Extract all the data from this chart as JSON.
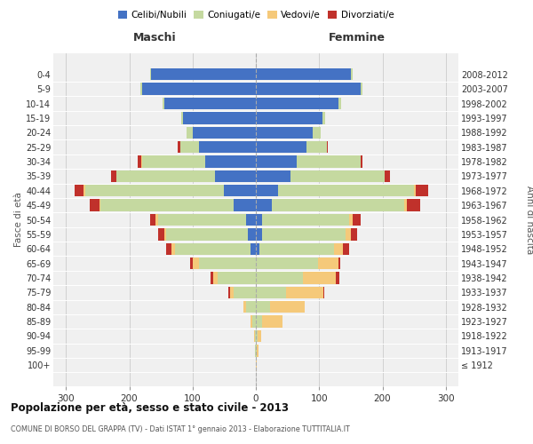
{
  "age_groups": [
    "100+",
    "95-99",
    "90-94",
    "85-89",
    "80-84",
    "75-79",
    "70-74",
    "65-69",
    "60-64",
    "55-59",
    "50-54",
    "45-49",
    "40-44",
    "35-39",
    "30-34",
    "25-29",
    "20-24",
    "15-19",
    "10-14",
    "5-9",
    "0-4"
  ],
  "birth_years": [
    "≤ 1912",
    "1913-1917",
    "1918-1922",
    "1923-1927",
    "1928-1932",
    "1933-1937",
    "1938-1942",
    "1943-1947",
    "1948-1952",
    "1953-1957",
    "1958-1962",
    "1963-1967",
    "1968-1972",
    "1973-1977",
    "1978-1982",
    "1983-1987",
    "1988-1992",
    "1993-1997",
    "1998-2002",
    "2003-2007",
    "2008-2012"
  ],
  "males": {
    "celibi": [
      0,
      0,
      0,
      0,
      0,
      0,
      0,
      0,
      8,
      12,
      15,
      35,
      50,
      65,
      80,
      90,
      100,
      115,
      145,
      180,
      165
    ],
    "coniugati": [
      0,
      1,
      2,
      5,
      15,
      35,
      60,
      90,
      120,
      130,
      140,
      210,
      220,
      155,
      100,
      30,
      10,
      3,
      2,
      2,
      2
    ],
    "vedovi": [
      0,
      0,
      1,
      3,
      5,
      6,
      8,
      10,
      5,
      3,
      3,
      2,
      2,
      1,
      1,
      0,
      0,
      0,
      0,
      0,
      0
    ],
    "divorziati": [
      0,
      0,
      0,
      0,
      0,
      2,
      3,
      4,
      9,
      10,
      9,
      15,
      15,
      8,
      5,
      3,
      0,
      0,
      0,
      0,
      0
    ]
  },
  "females": {
    "nubili": [
      0,
      0,
      0,
      0,
      0,
      0,
      0,
      0,
      5,
      10,
      10,
      25,
      35,
      55,
      65,
      80,
      90,
      105,
      130,
      165,
      150
    ],
    "coniugate": [
      0,
      1,
      3,
      10,
      22,
      48,
      75,
      98,
      118,
      132,
      138,
      210,
      215,
      148,
      100,
      32,
      12,
      5,
      5,
      3,
      3
    ],
    "vedove": [
      1,
      3,
      6,
      32,
      55,
      58,
      52,
      32,
      15,
      8,
      5,
      3,
      2,
      1,
      1,
      0,
      0,
      0,
      0,
      0,
      0
    ],
    "divorziate": [
      0,
      0,
      0,
      0,
      0,
      2,
      5,
      3,
      10,
      10,
      13,
      22,
      20,
      8,
      3,
      2,
      0,
      0,
      0,
      0,
      0
    ]
  },
  "colors": {
    "celibi_nubili": "#4472c4",
    "coniugati": "#c5d9a0",
    "vedovi": "#f5c97a",
    "divorziati": "#c0312b"
  },
  "xlim": 320,
  "title": "Popolazione per età, sesso e stato civile - 2013",
  "subtitle": "COMUNE DI BORSO DEL GRAPPA (TV) - Dati ISTAT 1° gennaio 2013 - Elaborazione TUTTITALIA.IT",
  "ylabel_left": "Fasce di età",
  "ylabel_right": "Anni di nascita",
  "xlabel_left": "Maschi",
  "xlabel_right": "Femmine",
  "background_color": "#ffffff",
  "grid_color": "#cccccc",
  "ax_bg": "#f0f0f0"
}
